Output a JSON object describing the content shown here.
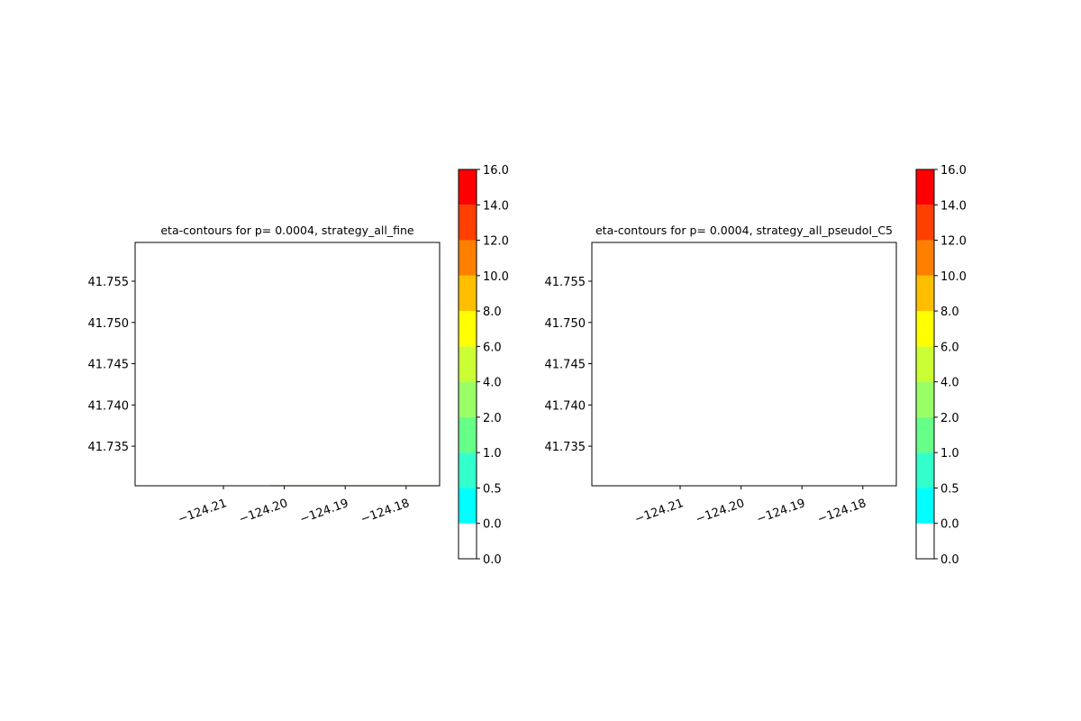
{
  "chart_data": [
    {
      "type": "contour",
      "title": "eta-contours for p= 0.0004, strategy_all_fine",
      "xlim": [
        -124.2245,
        -124.1745
      ],
      "ylim": [
        41.7302,
        41.7597
      ],
      "xticks": [
        {
          "value": -124.21,
          "label": "−124.21"
        },
        {
          "value": -124.2,
          "label": "−124.20"
        },
        {
          "value": -124.19,
          "label": "−124.19"
        },
        {
          "value": -124.18,
          "label": "−124.18"
        }
      ],
      "yticks": [
        41.735,
        {
          "value": 41.74,
          "label": "41.740"
        },
        41.745,
        {
          "value": 41.75,
          "label": "41.750"
        },
        41.755
      ],
      "colorbar": {
        "levels": [
          {
            "value": 0,
            "label": "0.0"
          },
          {
            "value": 0,
            "label": "0.0"
          },
          0.5,
          {
            "value": 1,
            "label": "1.0"
          },
          {
            "value": 2,
            "label": "2.0"
          },
          {
            "value": 4,
            "label": "4.0"
          },
          {
            "value": 6,
            "label": "6.0"
          },
          {
            "value": 8,
            "label": "8.0"
          },
          {
            "value": 10,
            "label": "10.0"
          },
          {
            "value": 12,
            "label": "12.0"
          },
          {
            "value": 14,
            "label": "14.0"
          },
          {
            "value": 16,
            "label": "16.0"
          }
        ],
        "colors": [
          "#ffffff",
          "#00ffff",
          "#33ffcc",
          "#66ff88",
          "#99ff66",
          "#ccff33",
          "#ffff00",
          "#ffbf00",
          "#ff8000",
          "#ff4000",
          "#ff0000"
        ]
      }
    },
    {
      "type": "contour",
      "title": "eta-contours for p= 0.0004, strategy_all_pseudoI_C5",
      "xlim": [
        -124.2245,
        -124.1745
      ],
      "ylim": [
        41.7302,
        41.7597
      ],
      "xticks": [
        {
          "value": -124.21,
          "label": "−124.21"
        },
        {
          "value": -124.2,
          "label": "−124.20"
        },
        {
          "value": -124.19,
          "label": "−124.19"
        },
        {
          "value": -124.18,
          "label": "−124.18"
        }
      ],
      "yticks": [
        41.735,
        {
          "value": 41.74,
          "label": "41.740"
        },
        41.745,
        {
          "value": 41.75,
          "label": "41.750"
        },
        41.755
      ],
      "colorbar": {
        "levels": [
          {
            "value": 0,
            "label": "0.0"
          },
          {
            "value": 0,
            "label": "0.0"
          },
          0.5,
          {
            "value": 1,
            "label": "1.0"
          },
          {
            "value": 2,
            "label": "2.0"
          },
          {
            "value": 4,
            "label": "4.0"
          },
          {
            "value": 6,
            "label": "6.0"
          },
          {
            "value": 8,
            "label": "8.0"
          },
          {
            "value": 10,
            "label": "10.0"
          },
          {
            "value": 12,
            "label": "12.0"
          },
          {
            "value": 14,
            "label": "14.0"
          },
          {
            "value": 16,
            "label": "16.0"
          }
        ],
        "colors": [
          "#ffffff",
          "#00ffff",
          "#33ffcc",
          "#66ff88",
          "#99ff66",
          "#ccff33",
          "#ffff00",
          "#ffbf00",
          "#ff8000",
          "#ff4000",
          "#ff0000"
        ]
      }
    }
  ]
}
